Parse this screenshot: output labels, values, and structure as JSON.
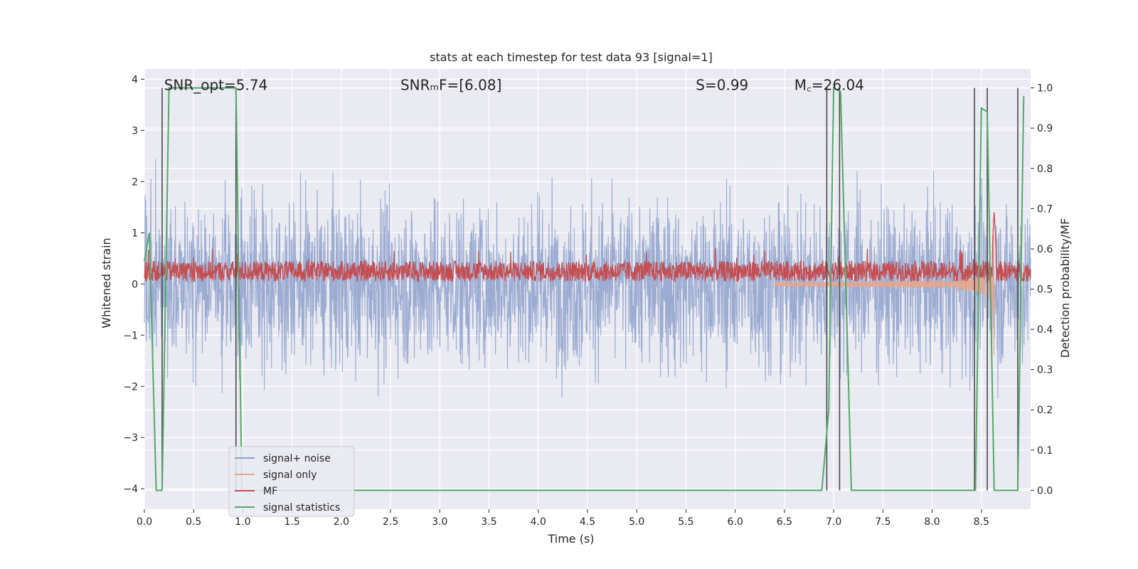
{
  "chart_data": {
    "type": "line",
    "title": "stats at each timestep for test data 93 [signal=1]",
    "xlabel": "Time (s)",
    "ylabel": "Whitened strain",
    "y2label": "Detection probability/MF",
    "xlim": [
      0.0,
      9.0
    ],
    "ylim": [
      -4.4,
      4.2
    ],
    "y2lim": [
      -0.047,
      1.047
    ],
    "xticks": [
      "0.0",
      "0.5",
      "1.0",
      "1.5",
      "2.0",
      "2.5",
      "3.0",
      "3.5",
      "4.0",
      "4.5",
      "5.0",
      "5.5",
      "6.0",
      "6.5",
      "7.0",
      "7.5",
      "8.0",
      "8.5"
    ],
    "yticks": [
      "−4",
      "−3",
      "−2",
      "−1",
      "0",
      "1",
      "2",
      "3",
      "4"
    ],
    "y2ticks": [
      "0.0",
      "0.1",
      "0.2",
      "0.3",
      "0.4",
      "0.5",
      "0.6",
      "0.7",
      "0.8",
      "0.9",
      "1.0"
    ],
    "grid": true,
    "legend_position": "lower-left",
    "annotations": [
      {
        "text": "SNR_opt=5.74",
        "x": 0.2,
        "y": 3.9
      },
      {
        "text": "SNRₘF=[6.08]",
        "x": 2.6,
        "y": 3.9
      },
      {
        "text": "S=0.99",
        "x": 5.6,
        "y": 3.9
      },
      {
        "text": "M꜀=26.04",
        "x": 6.6,
        "y": 3.9
      }
    ],
    "series": [
      {
        "name": "signal+ noise",
        "color": "#8da0cb",
        "axis": "left",
        "style": "noise",
        "noise_std": 1.0
      },
      {
        "name": "signal only",
        "color": "#e8a58a",
        "axis": "left",
        "style": "chirp",
        "t_merge": 8.63,
        "peak": 1.45
      },
      {
        "name": "MF",
        "color": "#c44e52",
        "axis": "left",
        "style": "band",
        "center": 0.25,
        "amplitude": 0.2
      },
      {
        "name": "signal statistics",
        "color": "#55a868",
        "axis": "right",
        "x": [
          0.0,
          0.05,
          0.12,
          0.18,
          0.25,
          0.93,
          0.99,
          6.88,
          6.95,
          7.0,
          7.07,
          7.18,
          8.44,
          8.5,
          8.56,
          8.63,
          8.87,
          8.93
        ],
        "y": [
          0.57,
          0.64,
          0.0,
          0.0,
          1.0,
          1.0,
          0.0,
          0.0,
          0.2,
          1.0,
          0.99,
          0.0,
          0.0,
          0.95,
          0.94,
          0.0,
          0.0,
          0.98
        ]
      }
    ],
    "vlines": [
      0.18,
      0.93,
      6.93,
      7.06,
      8.43,
      8.56,
      8.87
    ]
  }
}
